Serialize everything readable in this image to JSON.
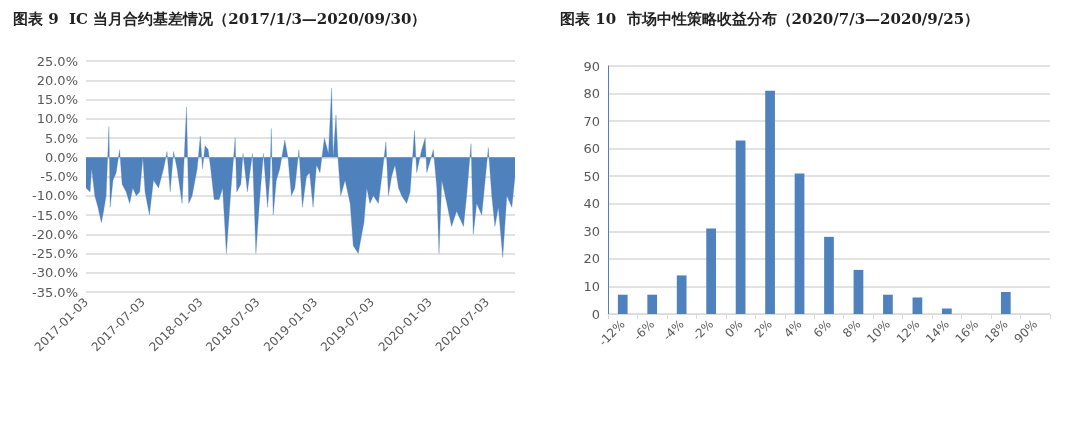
{
  "chart_data": [
    {
      "type": "area",
      "title": "图表 9  IC 当月合约基差情况（2017/1/3—2020/09/30）",
      "x": [
        "2017-01-03",
        "2017-01-16",
        "2017-01-21",
        "2017-01-31",
        "2017-02-10",
        "2017-02-21",
        "2017-02-28",
        "2017-03-08",
        "2017-03-17",
        "2017-03-21",
        "2017-03-30",
        "2017-04-09",
        "2017-04-20",
        "2017-04-28",
        "2017-05-11",
        "2017-05-22",
        "2017-06-01",
        "2017-06-12",
        "2017-06-23",
        "2017-07-03",
        "2017-07-10",
        "2017-07-24",
        "2017-08-06",
        "2017-08-22",
        "2017-09-07",
        "2017-09-18",
        "2017-09-28",
        "2017-10-09",
        "2017-10-20",
        "2017-11-05",
        "2017-11-19",
        "2017-11-26",
        "2017-12-07",
        "2017-12-23",
        "2018-01-02",
        "2018-01-09",
        "2018-01-17",
        "2018-01-27",
        "2018-02-04",
        "2018-02-15",
        "2018-03-03",
        "2018-03-14",
        "2018-03-26",
        "2018-04-09",
        "2018-04-23",
        "2018-04-28",
        "2018-05-11",
        "2018-05-18",
        "2018-06-01",
        "2018-06-17",
        "2018-06-28",
        "2018-07-09",
        "2018-07-22",
        "2018-08-04",
        "2018-08-12",
        "2018-08-16",
        "2018-08-22",
        "2018-09-01",
        "2018-09-12",
        "2018-09-28",
        "2018-10-08",
        "2018-10-19",
        "2018-10-30",
        "2018-11-12",
        "2018-11-23",
        "2018-12-06",
        "2018-12-16",
        "2018-12-27",
        "2019-01-07",
        "2019-01-18",
        "2019-02-01",
        "2019-02-14",
        "2019-02-24",
        "2019-03-01",
        "2019-03-10",
        "2019-03-17",
        "2019-03-25",
        "2019-04-08",
        "2019-04-24",
        "2019-05-04",
        "2019-05-20",
        "2019-05-31",
        "2019-06-07",
        "2019-06-16",
        "2019-06-26",
        "2019-07-07",
        "2019-07-23",
        "2019-08-03",
        "2019-08-16",
        "2019-08-24",
        "2019-09-03",
        "2019-09-14",
        "2019-09-25",
        "2019-10-05",
        "2019-10-21",
        "2019-11-01",
        "2019-11-15",
        "2019-11-22",
        "2019-12-08",
        "2019-12-19",
        "2019-12-24",
        "2020-01-04",
        "2020-01-14",
        "2020-01-25",
        "2020-02-01",
        "2020-02-10",
        "2020-02-26",
        "2020-03-12",
        "2020-03-28",
        "2020-04-19",
        "2020-04-29",
        "2020-05-13",
        "2020-05-20",
        "2020-05-31",
        "2020-06-16",
        "2020-06-21",
        "2020-07-07",
        "2020-07-18",
        "2020-07-28",
        "2020-08-08",
        "2020-08-22",
        "2020-09-04",
        "2020-09-20",
        "2020-09-30"
      ],
      "series": [
        {
          "color": "#4f81bd",
          "values": [
            -8,
            -9,
            -3,
            -10,
            -13,
            -17,
            -14,
            -10,
            8,
            -13,
            -6,
            -4,
            2,
            -7,
            -9,
            -12,
            -8,
            -10,
            -9,
            0,
            -9,
            -15,
            -6,
            -8,
            -3,
            1.5,
            -9,
            1.5,
            -3,
            -12,
            13,
            -12,
            -10,
            -3,
            5.5,
            -3,
            3,
            2,
            -3,
            -11,
            -11,
            -8,
            -25,
            -9,
            5,
            -9,
            -7,
            1,
            -9,
            1,
            -25,
            -12,
            1,
            -13,
            -5,
            7.5,
            -15,
            -6,
            -3,
            4.5,
            0,
            -10,
            -8,
            2,
            -13,
            -5,
            -4,
            -13,
            -2,
            -4,
            5,
            1,
            18,
            0,
            11,
            -1,
            -10,
            -6,
            -12,
            -23,
            -25,
            -20,
            -17,
            -8,
            -12,
            -10,
            -12,
            -5,
            4,
            -10,
            -5,
            -2,
            -8,
            -10,
            -12,
            -9,
            7,
            -4,
            2,
            5,
            -4,
            -1,
            2,
            -8,
            -25,
            -6,
            -12,
            -18,
            -14,
            -18,
            -10,
            3.5,
            -20,
            -12,
            -15,
            -11,
            2.5,
            -10,
            -18,
            -13,
            -26,
            -10,
            -13,
            -5
          ]
        }
      ],
      "xlim": [
        "2017-01-03",
        "2020-09-30"
      ],
      "xticks": [
        "2017-01-03",
        "2017-07-03",
        "2018-01-03",
        "2018-07-03",
        "2019-01-03",
        "2019-07-03",
        "2020-01-03",
        "2020-07-03"
      ],
      "ylim": [
        -35,
        25
      ],
      "yticks": [
        {
          "value": -35,
          "label": "-35.0%"
        },
        {
          "value": -30,
          "label": "-30.0%"
        },
        {
          "value": -25,
          "label": "-25.0%"
        },
        {
          "value": -20,
          "label": "-20.0%"
        },
        {
          "value": -15,
          "label": "-15.0%"
        },
        {
          "value": -10,
          "label": "-10.0%"
        },
        {
          "value": -5,
          "label": "-5.0%"
        },
        {
          "value": 0,
          "label": "0.0%"
        },
        {
          "value": 5,
          "label": "5.0%"
        },
        {
          "value": 10,
          "label": "10.0%"
        },
        {
          "value": 15,
          "label": "15.0%"
        },
        {
          "value": 20,
          "label": "20.0%"
        },
        {
          "value": 25,
          "label": "25.0%"
        }
      ],
      "grid": "y"
    },
    {
      "type": "bar",
      "title": "图表 10  市场中性策略收益分布（2020/7/3—2020/9/25）",
      "categories": [
        "-12%",
        "-6%",
        "-4%",
        "-2%",
        "0%",
        "2%",
        "4%",
        "6%",
        "8%",
        "10%",
        "12%",
        "14%",
        "16%",
        "18%",
        "90%"
      ],
      "values": [
        7,
        7,
        14,
        31,
        63,
        81,
        51,
        28,
        16,
        7,
        6,
        2,
        0,
        8,
        0
      ],
      "color": "#4f81bd",
      "ylim": [
        0,
        90
      ],
      "yticks": [
        0,
        10,
        20,
        30,
        40,
        50,
        60,
        70,
        80,
        90
      ],
      "grid": "y"
    }
  ]
}
